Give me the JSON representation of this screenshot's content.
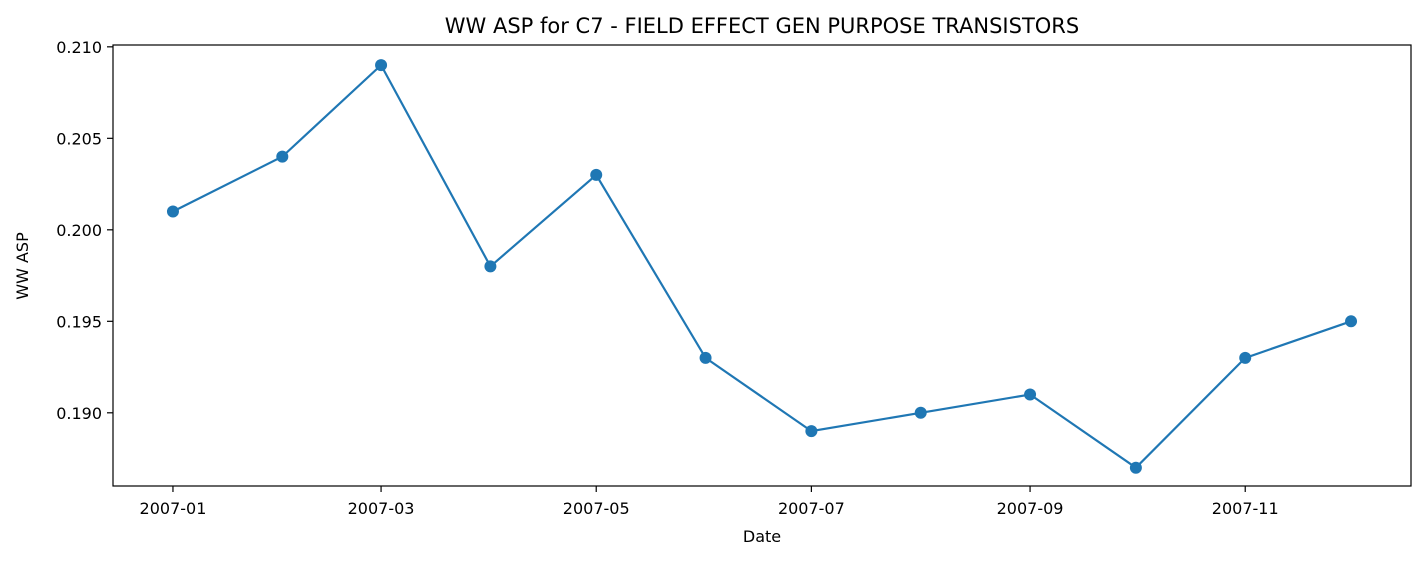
{
  "chart_data": {
    "type": "line",
    "title": "WW ASP for C7 - FIELD EFFECT GEN PURPOSE TRANSISTORS",
    "xlabel": "Date",
    "ylabel": "WW ASP",
    "x": [
      "2007-01-01",
      "2007-02-01",
      "2007-03-01",
      "2007-04-01",
      "2007-05-01",
      "2007-06-01",
      "2007-07-01",
      "2007-08-01",
      "2007-09-01",
      "2007-10-01",
      "2007-11-01",
      "2007-12-01"
    ],
    "series": [
      {
        "values": [
          0.201,
          0.204,
          0.209,
          0.198,
          0.203,
          0.193,
          0.189,
          0.19,
          0.191,
          0.187,
          0.193,
          0.195
        ]
      }
    ],
    "xticks": [
      "2007-01",
      "2007-03",
      "2007-05",
      "2007-07",
      "2007-09",
      "2007-11"
    ],
    "yticks": [
      "0.190",
      "0.195",
      "0.200",
      "0.205",
      "0.210"
    ],
    "xlim": [
      "2006-12-15",
      "2007-12-18"
    ],
    "ylim": [
      0.186,
      0.2101
    ],
    "grid": false,
    "line_color": "#1f77b4",
    "marker": "circle"
  }
}
